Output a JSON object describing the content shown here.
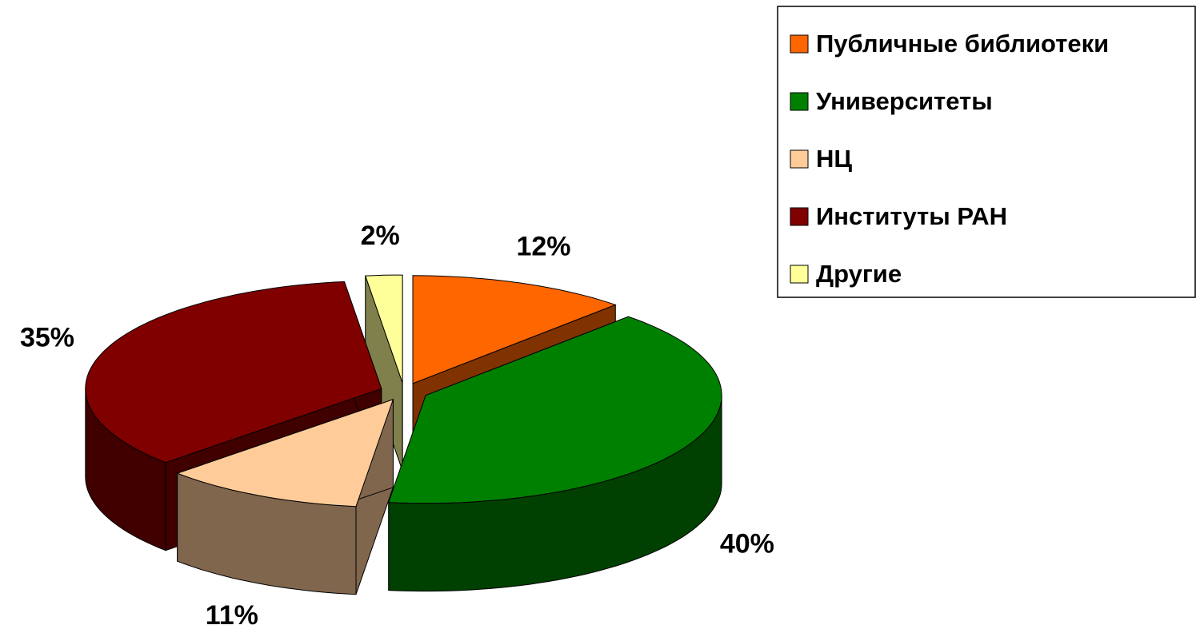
{
  "chart_data": {
    "type": "pie",
    "categories": [
      "Публичные библиотеки",
      "Университеты",
      "НЦ",
      "Институты РАН",
      "Другие"
    ],
    "values": [
      12,
      40,
      11,
      35,
      2
    ],
    "value_labels": [
      "12%",
      "40%",
      "11%",
      "35%",
      "2%"
    ],
    "colors": [
      "#ff6600",
      "#008000",
      "#ffcc99",
      "#800000",
      "#ffff99"
    ],
    "legend": "top-right"
  }
}
